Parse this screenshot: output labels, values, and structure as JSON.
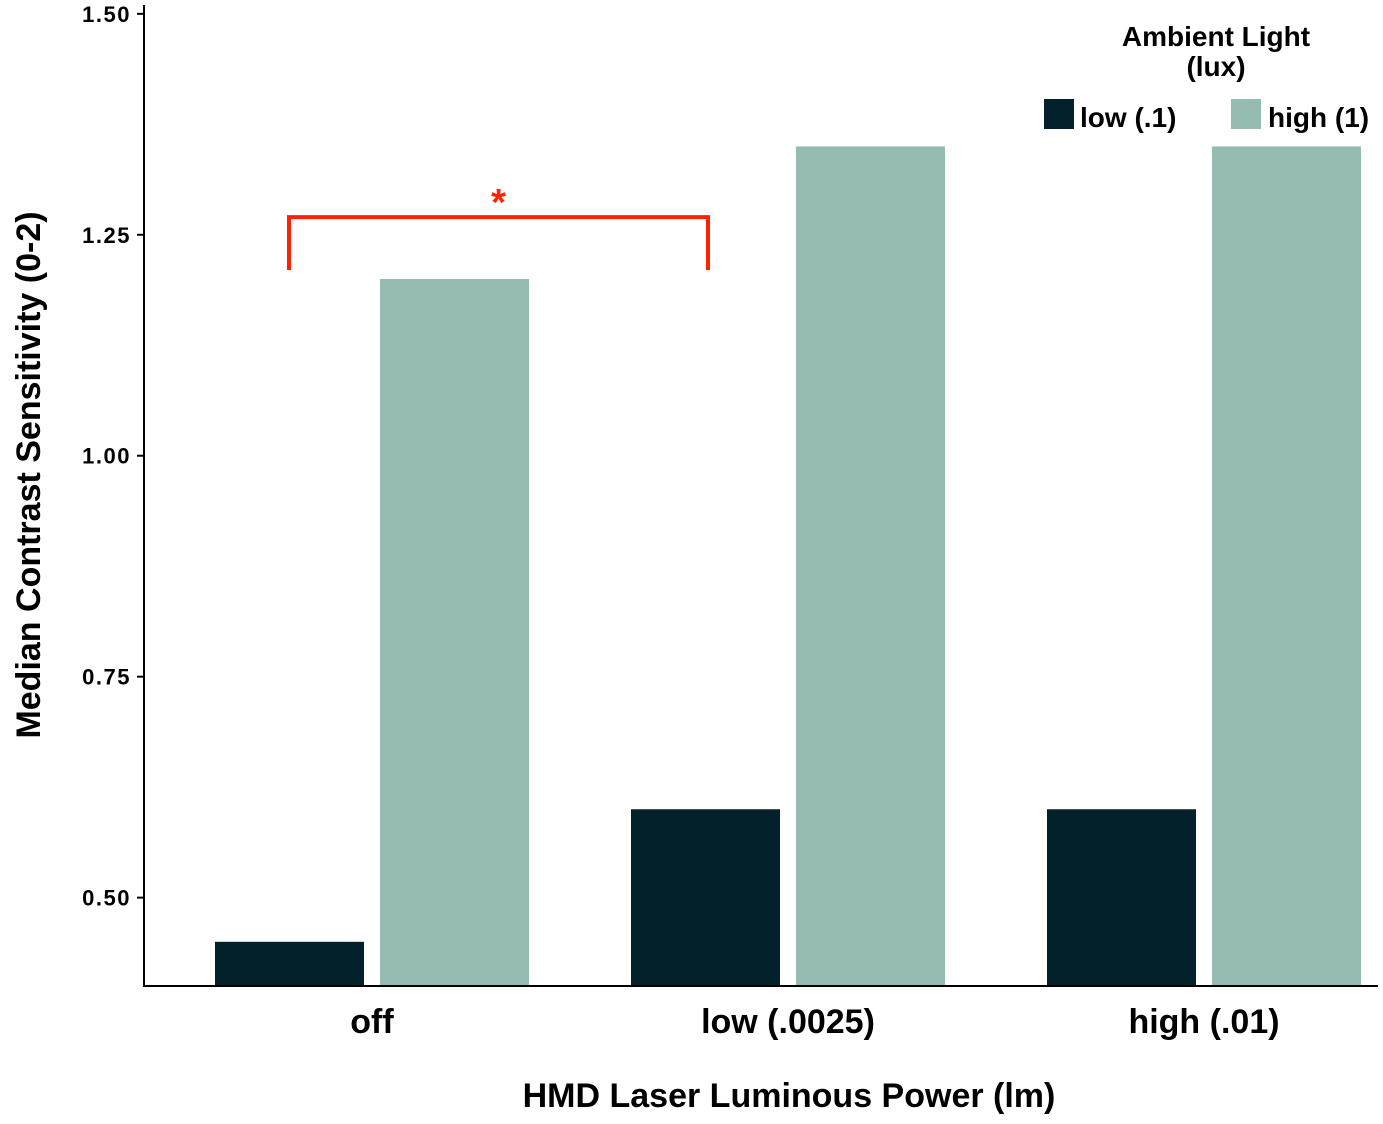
{
  "chart_data": {
    "type": "bar",
    "title": "",
    "xlabel": "HMD Laser Luminous Power (lm)",
    "ylabel": "Median Contrast Sensitivity (0-2)",
    "categories": [
      "off",
      "low (.0025)",
      "high (.01)"
    ],
    "series": [
      {
        "name": "low (.1)",
        "values": [
          0.45,
          0.6,
          0.6
        ],
        "color": "#02212B"
      },
      {
        "name": "high (1)",
        "values": [
          1.2,
          1.35,
          1.35
        ],
        "color": "#96BBB3"
      }
    ],
    "ylim": [
      0.4,
      1.51
    ],
    "yticks": [
      0.5,
      0.75,
      1.0,
      1.25,
      1.5
    ],
    "ytick_labels": [
      "0.50",
      "0.75",
      "1.00",
      "1.25",
      "1.50"
    ],
    "grid": false,
    "legend": {
      "title_line1": "Ambient Light",
      "title_line2": "(lux)",
      "placement": "top-right"
    },
    "annotations": [
      {
        "type": "significance-bracket",
        "label": "*",
        "from_category": "off",
        "to_category": "low (.0025)",
        "color": "#FF2200",
        "level": 1.27
      }
    ]
  }
}
